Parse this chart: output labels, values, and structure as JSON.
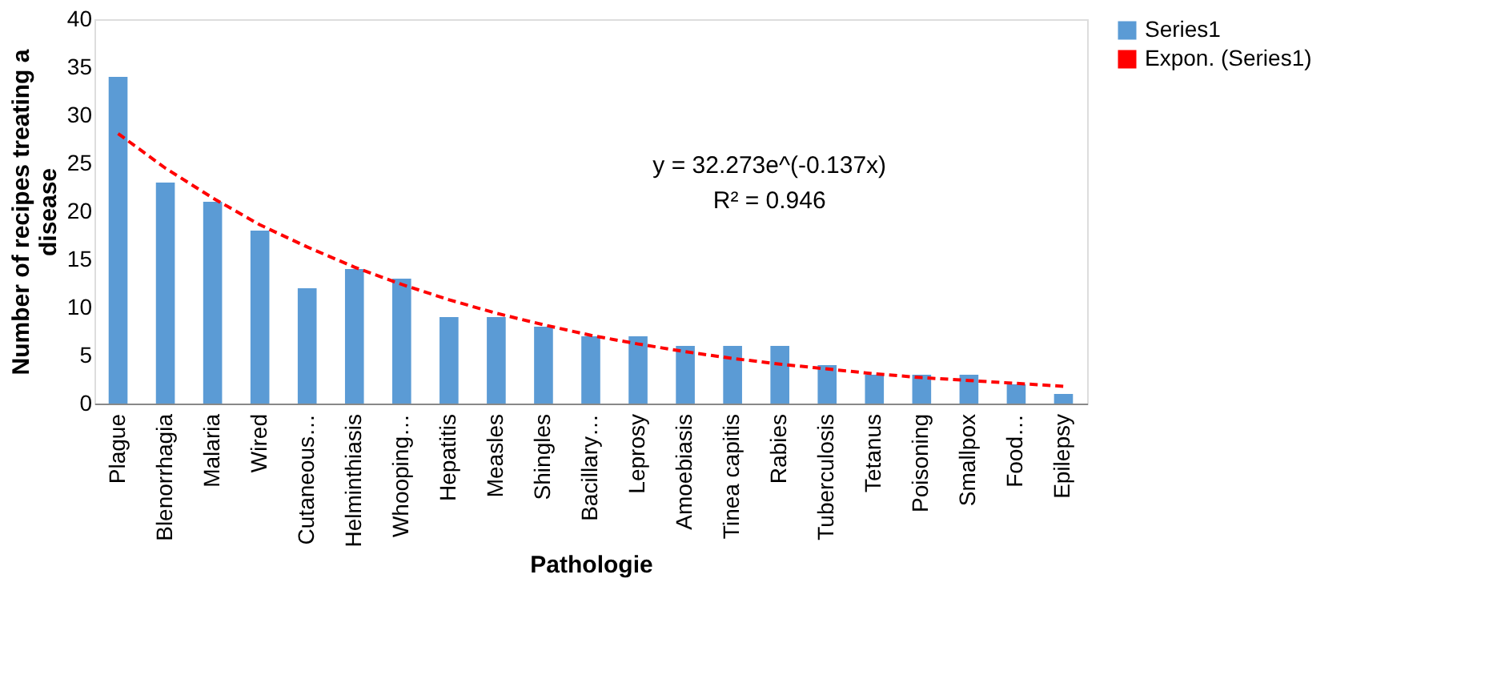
{
  "chart_data": {
    "type": "bar",
    "xlabel": "Pathologie",
    "ylabel": "Number of recipes treating a disease",
    "categories": [
      "Plague",
      "Blenorrhagia",
      "Malaria",
      "Wired",
      "Cutaneous…",
      "Helminthiasis",
      "Whooping…",
      "Hepatitis",
      "Measles",
      "Shingles",
      "Bacillary…",
      "Leprosy",
      "Amoebiasis",
      "Tinea capitis",
      "Rabies",
      "Tuberculosis",
      "Tetanus",
      "Poisoning",
      "Smallpox",
      "Food…",
      "Epilepsy"
    ],
    "series": [
      {
        "name": "Series1",
        "color": "#5b9bd5",
        "values": [
          34,
          23,
          21,
          18,
          12,
          14,
          13,
          9,
          9,
          8,
          7,
          7,
          6,
          6,
          6,
          4,
          3,
          3,
          3,
          2,
          1
        ]
      },
      {
        "name": "Expon. (Series1)",
        "type": "line",
        "color": "#ff0000",
        "line_style": "dashed",
        "values": [
          28.1,
          24.5,
          21.4,
          18.6,
          16.3,
          14.2,
          12.4,
          10.8,
          9.4,
          8.2,
          7.1,
          6.2,
          5.4,
          4.7,
          4.1,
          3.6,
          3.1,
          2.7,
          2.4,
          2.1,
          1.8
        ]
      }
    ],
    "ylim": [
      0,
      40
    ],
    "yticks": [
      0,
      5,
      10,
      15,
      20,
      25,
      30,
      35,
      40
    ],
    "grid": false,
    "legend": "right",
    "marker": "none",
    "annotations": [
      "y = 32.273e^(-0.137x)",
      "R² = 0.946"
    ]
  }
}
